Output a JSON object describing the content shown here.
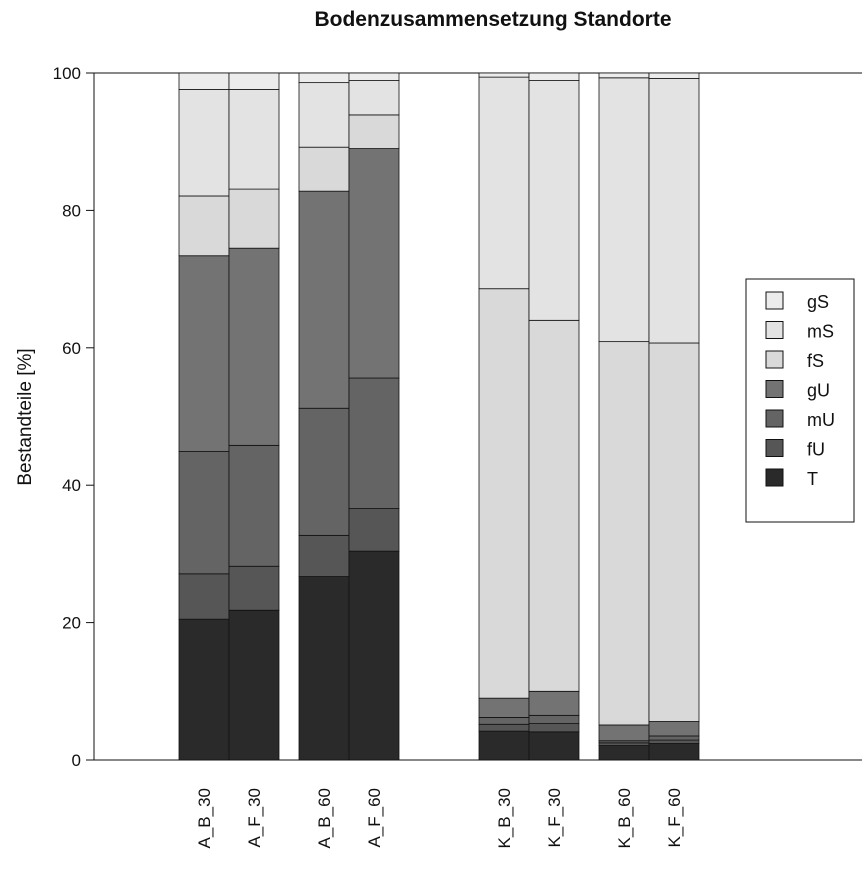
{
  "chart_data": {
    "type": "bar",
    "stacked": true,
    "title": "Bodenzusammensetzung Standorte",
    "xlabel": "",
    "ylabel": "Bestandteile [%]",
    "ylim": [
      0,
      100
    ],
    "yticks": [
      0,
      20,
      40,
      60,
      80,
      100
    ],
    "grid": false,
    "legend_position": "right",
    "categories": [
      "A_B_30",
      "A_F_30",
      "A_B_60",
      "A_F_60",
      "K_B_30",
      "K_F_30",
      "K_B_60",
      "K_F_60"
    ],
    "series": [
      {
        "name": "T",
        "color": "#2a2a2a",
        "values": [
          20.5,
          21.8,
          26.7,
          30.4,
          4.2,
          4.1,
          2.1,
          2.4
        ]
      },
      {
        "name": "fU",
        "color": "#565656",
        "values": [
          6.6,
          6.4,
          6.0,
          6.2,
          1.0,
          1.2,
          0.4,
          0.5
        ]
      },
      {
        "name": "mU",
        "color": "#646464",
        "values": [
          17.8,
          17.6,
          18.5,
          19.0,
          1.0,
          1.2,
          0.3,
          0.6
        ]
      },
      {
        "name": "gU",
        "color": "#737373",
        "values": [
          28.5,
          28.7,
          31.6,
          33.4,
          2.8,
          3.5,
          2.3,
          2.1
        ]
      },
      {
        "name": "fS",
        "color": "#d9d9d9",
        "values": [
          8.7,
          8.6,
          6.4,
          4.9,
          59.6,
          54.0,
          55.8,
          55.1
        ]
      },
      {
        "name": "mS",
        "color": "#e3e3e3",
        "values": [
          15.5,
          14.5,
          9.4,
          5.0,
          30.8,
          34.9,
          38.4,
          38.5
        ]
      },
      {
        "name": "gS",
        "color": "#ececec",
        "values": [
          2.4,
          2.4,
          1.4,
          1.1,
          0.6,
          1.1,
          0.7,
          0.8
        ]
      }
    ],
    "legend_order": [
      "gS",
      "mS",
      "fS",
      "gU",
      "mU",
      "fU",
      "T"
    ]
  }
}
